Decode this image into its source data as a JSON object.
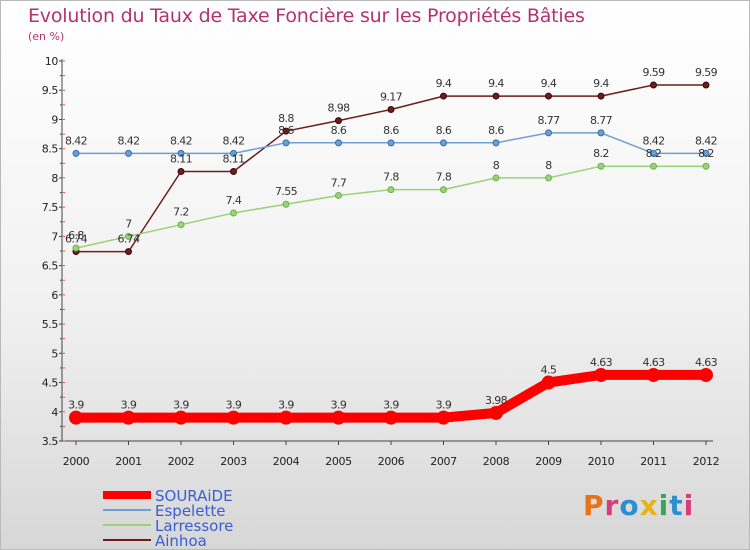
{
  "title": "Evolution du Taux de Taxe Foncière sur les Propriétés Bâties",
  "subtitle": "(en %)",
  "logo": {
    "text": "Proxiti",
    "colors": [
      "#e8711b",
      "#d93a7c",
      "#2d8fd0",
      "#e8b21b",
      "#3aa655",
      "#2d8fd0",
      "#d93a7c"
    ]
  },
  "chart_data": {
    "type": "line",
    "x": [
      "2000",
      "2001",
      "2002",
      "2003",
      "2004",
      "2005",
      "2006",
      "2007",
      "2008",
      "2009",
      "2010",
      "2011",
      "2012"
    ],
    "ylim": [
      3.5,
      10
    ],
    "yticks": [
      "3.5",
      "4",
      "4.5",
      "5",
      "5.5",
      "6",
      "6.5",
      "7",
      "7.5",
      "8",
      "8.5",
      "9",
      "9.5",
      "10"
    ],
    "grid": false,
    "legend": "bottom-left",
    "series": [
      {
        "name": "SOURAiDE",
        "color": "#ff0000",
        "width": 10,
        "values": [
          3.9,
          3.9,
          3.9,
          3.9,
          3.9,
          3.9,
          3.9,
          3.9,
          3.98,
          4.5,
          4.63,
          4.63,
          4.63
        ],
        "labels": [
          "3.9",
          "3.9",
          "3.9",
          "3.9",
          "3.9",
          "3.9",
          "3.9",
          "3.9",
          "3.98",
          "4.5",
          "4.63",
          "4.63",
          "4.63"
        ]
      },
      {
        "name": "Espelette",
        "color": "#6f9fd0",
        "width": 1.5,
        "values": [
          8.42,
          8.42,
          8.42,
          8.42,
          8.6,
          8.6,
          8.6,
          8.6,
          8.6,
          8.77,
          8.77,
          8.42,
          8.42
        ],
        "labels": [
          "8.42",
          "8.42",
          "8.42",
          "8.42",
          "8.6",
          "8.6",
          "8.6",
          "8.6",
          "8.6",
          "8.77",
          "8.77",
          "8.42",
          "8.42"
        ]
      },
      {
        "name": "Larressore",
        "color": "#9ad27a",
        "width": 1.5,
        "values": [
          6.8,
          7,
          7.2,
          7.4,
          7.55,
          7.7,
          7.8,
          7.8,
          8,
          8,
          8.2,
          8.2,
          8.2
        ],
        "labels": [
          "6.8",
          "7",
          "7.2",
          "7.4",
          "7.55",
          "7.7",
          "7.8",
          "7.8",
          "8",
          "8",
          "8.2",
          "8.2",
          "8.2"
        ]
      },
      {
        "name": "Ainhoa",
        "color": "#6e1c1c",
        "width": 1.5,
        "values": [
          6.74,
          6.74,
          8.11,
          8.11,
          8.8,
          8.98,
          9.17,
          9.4,
          9.4,
          9.4,
          9.4,
          9.59,
          9.59
        ],
        "labels": [
          "6.74",
          "6.74",
          "8.11",
          "8.11",
          "8.8",
          "8.98",
          "9.17",
          "9.4",
          "9.4",
          "9.4",
          "9.4",
          "9.59",
          "9.59"
        ]
      }
    ]
  }
}
